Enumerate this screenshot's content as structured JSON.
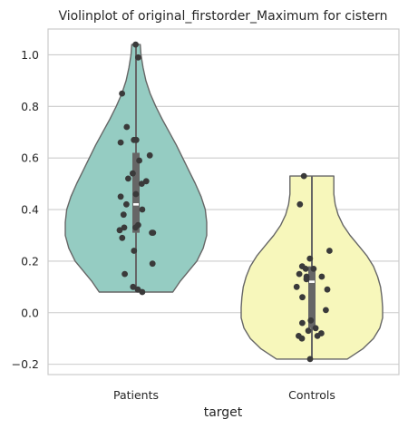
{
  "chart_data": {
    "type": "violin",
    "title": "Violinplot of original_firstorder_Maximum for cistern",
    "xlabel": "target",
    "ylabel": "",
    "ylim": [
      -0.24,
      1.1
    ],
    "y_ticks": [
      -0.2,
      0.0,
      0.2,
      0.4,
      0.6,
      0.8,
      1.0
    ],
    "y_tick_labels": [
      "−0.2",
      "0.0",
      "0.2",
      "0.4",
      "0.6",
      "0.8",
      "1.0"
    ],
    "grid": "horizontal",
    "categories": [
      "Patients",
      "Controls"
    ],
    "colors": {
      "Patients": "#95ccc2",
      "Controls": "#f7f7bb",
      "outline": "#666666",
      "points": "#3a3a3a",
      "box": "#666666",
      "median": "#ffffff",
      "grid": "#cccccc"
    },
    "violins": [
      {
        "category": "Patients",
        "min": 0.08,
        "max": 1.04,
        "q1": 0.31,
        "median": 0.42,
        "q3": 0.62,
        "density_profile": [
          [
            0.08,
            0.52
          ],
          [
            0.12,
            0.62
          ],
          [
            0.16,
            0.74
          ],
          [
            0.2,
            0.86
          ],
          [
            0.25,
            0.95
          ],
          [
            0.3,
            1.0
          ],
          [
            0.35,
            1.0
          ],
          [
            0.4,
            0.98
          ],
          [
            0.45,
            0.92
          ],
          [
            0.5,
            0.84
          ],
          [
            0.55,
            0.75
          ],
          [
            0.6,
            0.66
          ],
          [
            0.65,
            0.57
          ],
          [
            0.7,
            0.47
          ],
          [
            0.75,
            0.37
          ],
          [
            0.8,
            0.28
          ],
          [
            0.85,
            0.2
          ],
          [
            0.9,
            0.14
          ],
          [
            0.95,
            0.1
          ],
          [
            1.0,
            0.07
          ],
          [
            1.04,
            0.06
          ]
        ],
        "points": [
          1.04,
          0.99,
          0.85,
          0.72,
          0.67,
          0.67,
          0.66,
          0.61,
          0.59,
          0.54,
          0.52,
          0.51,
          0.5,
          0.45,
          0.46,
          0.42,
          0.4,
          0.38,
          0.34,
          0.33,
          0.33,
          0.32,
          0.31,
          0.31,
          0.29,
          0.24,
          0.19,
          0.15,
          0.1,
          0.09,
          0.08
        ]
      },
      {
        "category": "Controls",
        "min": -0.18,
        "max": 0.53,
        "q1": -0.06,
        "median": 0.12,
        "q3": 0.18,
        "density_profile": [
          [
            -0.18,
            0.5
          ],
          [
            -0.14,
            0.72
          ],
          [
            -0.1,
            0.87
          ],
          [
            -0.06,
            0.96
          ],
          [
            -0.02,
            1.0
          ],
          [
            0.02,
            1.0
          ],
          [
            0.06,
            0.99
          ],
          [
            0.1,
            0.97
          ],
          [
            0.14,
            0.93
          ],
          [
            0.18,
            0.87
          ],
          [
            0.22,
            0.78
          ],
          [
            0.26,
            0.66
          ],
          [
            0.3,
            0.54
          ],
          [
            0.34,
            0.44
          ],
          [
            0.38,
            0.37
          ],
          [
            0.42,
            0.33
          ],
          [
            0.46,
            0.31
          ],
          [
            0.5,
            0.31
          ],
          [
            0.53,
            0.31
          ]
        ],
        "points": [
          0.53,
          0.42,
          0.24,
          0.21,
          0.18,
          0.17,
          0.17,
          0.15,
          0.14,
          0.14,
          0.13,
          0.1,
          0.09,
          0.06,
          0.01,
          -0.03,
          -0.04,
          -0.06,
          -0.07,
          -0.08,
          -0.09,
          -0.09,
          -0.1,
          -0.18
        ]
      }
    ]
  }
}
